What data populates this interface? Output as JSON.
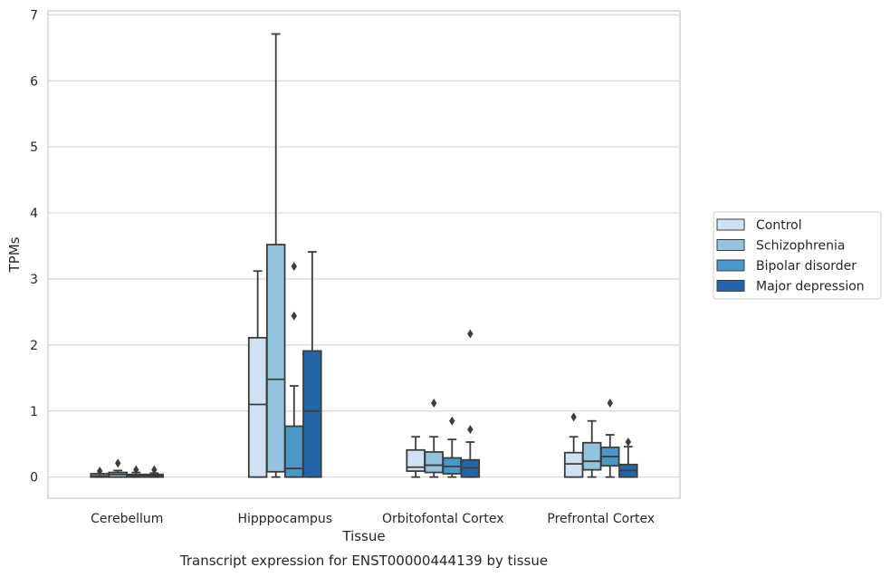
{
  "chart_data": {
    "type": "boxplot",
    "title": "",
    "caption": "Transcript expression for ENST00000444139 by tissue",
    "xlabel": "Tissue",
    "ylabel": "TPMs",
    "ylim": [
      -0.32,
      7.06
    ],
    "yticks": [
      0,
      1,
      2,
      3,
      4,
      5,
      6,
      7
    ],
    "grid": "horizontal",
    "legend_position": "right",
    "categories": [
      "Cerebellum",
      "Hipppocampus",
      "Orbitofontal Cortex",
      "Prefrontal Cortex"
    ],
    "series": [
      {
        "name": "Control",
        "color": "#cfe1f2",
        "boxes": [
          {
            "whislo": 0.0,
            "q1": 0.0,
            "med": 0.02,
            "q3": 0.05,
            "whishi": 0.05,
            "fliers": [
              0.09
            ]
          },
          {
            "whislo": 0.0,
            "q1": 0.0,
            "med": 1.1,
            "q3": 2.11,
            "whishi": 3.12,
            "fliers": []
          },
          {
            "whislo": 0.0,
            "q1": 0.09,
            "med": 0.15,
            "q3": 0.41,
            "whishi": 0.61,
            "fliers": []
          },
          {
            "whislo": 0.0,
            "q1": 0.0,
            "med": 0.2,
            "q3": 0.37,
            "whishi": 0.61,
            "fliers": [
              0.91
            ]
          }
        ]
      },
      {
        "name": "Schizophrenia",
        "color": "#93c3df",
        "boxes": [
          {
            "whislo": 0.0,
            "q1": 0.0,
            "med": 0.04,
            "q3": 0.07,
            "whishi": 0.1,
            "fliers": [
              0.21
            ]
          },
          {
            "whislo": 0.0,
            "q1": 0.08,
            "med": 1.48,
            "q3": 3.52,
            "whishi": 6.71,
            "fliers": []
          },
          {
            "whislo": 0.0,
            "q1": 0.07,
            "med": 0.18,
            "q3": 0.38,
            "whishi": 0.61,
            "fliers": [
              1.12
            ]
          },
          {
            "whislo": 0.0,
            "q1": 0.11,
            "med": 0.24,
            "q3": 0.52,
            "whishi": 0.85,
            "fliers": []
          }
        ]
      },
      {
        "name": "Bipolar disorder",
        "color": "#4a98c9",
        "boxes": [
          {
            "whislo": 0.0,
            "q1": 0.0,
            "med": 0.02,
            "q3": 0.04,
            "whishi": 0.07,
            "fliers": [
              0.11
            ]
          },
          {
            "whislo": 0.0,
            "q1": 0.0,
            "med": 0.13,
            "q3": 0.77,
            "whishi": 1.38,
            "fliers": [
              2.44,
              3.19
            ]
          },
          {
            "whislo": 0.0,
            "q1": 0.05,
            "med": 0.16,
            "q3": 0.29,
            "whishi": 0.57,
            "fliers": [
              0.85
            ]
          },
          {
            "whislo": 0.0,
            "q1": 0.17,
            "med": 0.31,
            "q3": 0.45,
            "whishi": 0.64,
            "fliers": [
              1.12
            ]
          }
        ]
      },
      {
        "name": "Major depression",
        "color": "#2465a8",
        "boxes": [
          {
            "whislo": 0.0,
            "q1": 0.0,
            "med": 0.02,
            "q3": 0.04,
            "whishi": 0.06,
            "fliers": [
              0.11
            ]
          },
          {
            "whislo": 0.0,
            "q1": 0.0,
            "med": 1.0,
            "q3": 1.91,
            "whishi": 3.41,
            "fliers": []
          },
          {
            "whislo": 0.0,
            "q1": 0.0,
            "med": 0.14,
            "q3": 0.26,
            "whishi": 0.53,
            "fliers": [
              0.72,
              2.17
            ]
          },
          {
            "whislo": 0.0,
            "q1": 0.0,
            "med": 0.1,
            "q3": 0.19,
            "whishi": 0.46,
            "fliers": [
              0.53
            ]
          }
        ]
      }
    ]
  }
}
